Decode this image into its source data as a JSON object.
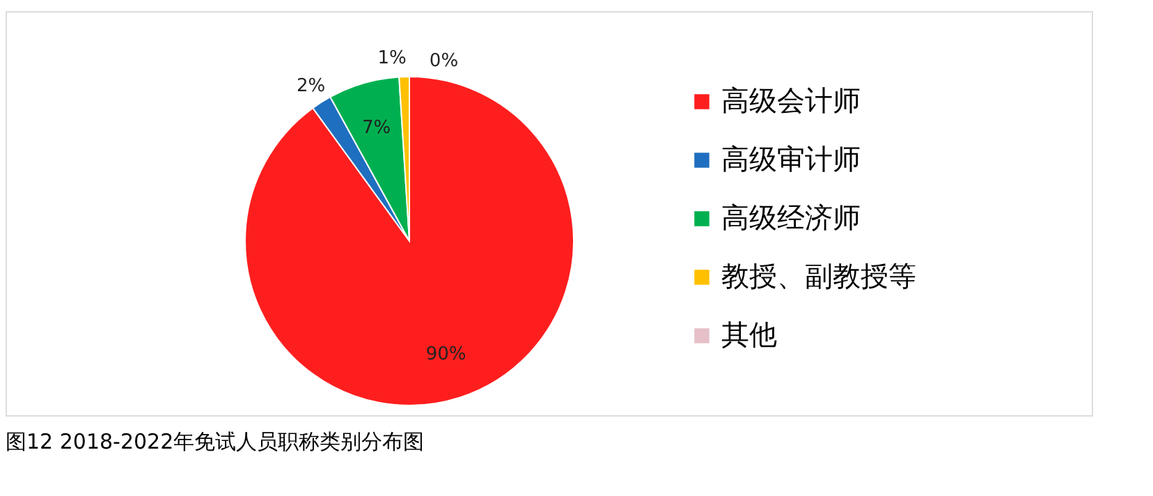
{
  "chart_data": {
    "type": "pie",
    "title": "图12  2018-2022年免试人员职称类别分布图",
    "categories": [
      "高级会计师",
      "高级审计师",
      "高级经济师",
      "教授、副教授等",
      "其他"
    ],
    "values": [
      90,
      2,
      7,
      1,
      0
    ],
    "colors": [
      "#fe1e1e",
      "#1f6fc0",
      "#00b050",
      "#ffc000",
      "#e6c0c8"
    ],
    "value_labels": [
      "90%",
      "2%",
      "7%",
      "1%",
      "0%"
    ],
    "legend": "right"
  }
}
